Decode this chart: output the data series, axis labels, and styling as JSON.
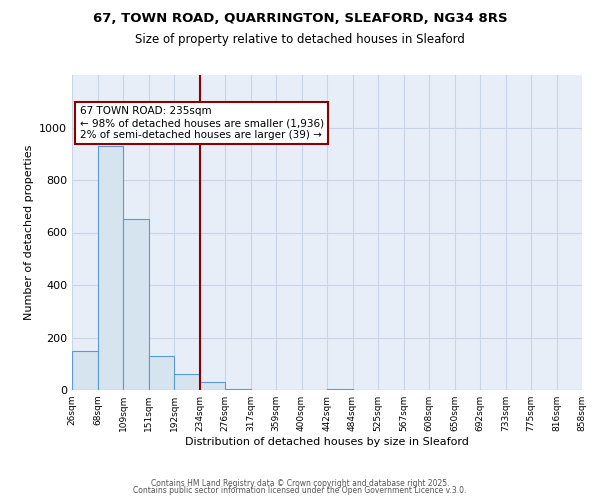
{
  "title_line1": "67, TOWN ROAD, QUARRINGTON, SLEAFORD, NG34 8RS",
  "title_line2": "Size of property relative to detached houses in Sleaford",
  "xlabel": "Distribution of detached houses by size in Sleaford",
  "ylabel": "Number of detached properties",
  "bins": [
    "26sqm",
    "68sqm",
    "109sqm",
    "151sqm",
    "192sqm",
    "234sqm",
    "276sqm",
    "317sqm",
    "359sqm",
    "400sqm",
    "442sqm",
    "484sqm",
    "525sqm",
    "567sqm",
    "608sqm",
    "650sqm",
    "692sqm",
    "733sqm",
    "775sqm",
    "816sqm",
    "858sqm"
  ],
  "values": [
    150,
    930,
    650,
    130,
    60,
    30,
    5,
    0,
    0,
    0,
    5,
    0,
    0,
    0,
    0,
    0,
    0,
    0,
    0,
    0
  ],
  "bar_color": "#d6e4f0",
  "bar_edgecolor": "#5b9bd5",
  "vline_color": "#8b0000",
  "annotation_text": "67 TOWN ROAD: 235sqm\n← 98% of detached houses are smaller (1,936)\n2% of semi-detached houses are larger (39) →",
  "annotation_box_color": "white",
  "annotation_box_edgecolor": "#8b0000",
  "ylim": [
    0,
    1200
  ],
  "yticks": [
    0,
    200,
    400,
    600,
    800,
    1000
  ],
  "grid_color": "#c8d4e8",
  "background_color": "#e8eef8",
  "footer_line1": "Contains HM Land Registry data © Crown copyright and database right 2025.",
  "footer_line2": "Contains public sector information licensed under the Open Government Licence v.3.0."
}
